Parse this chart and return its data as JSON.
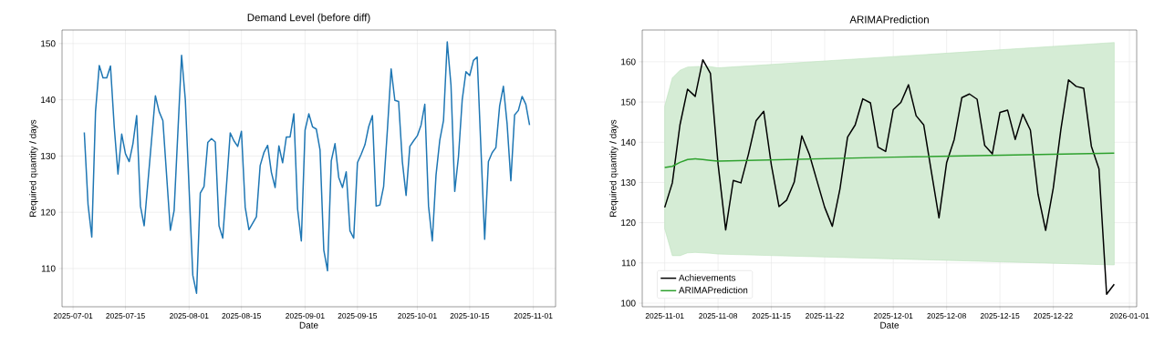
{
  "chart_data": [
    {
      "type": "line",
      "title": "Demand Level (before diff)",
      "xlabel": "Date",
      "ylabel": "Required quantity / days",
      "color": "#1f77b4",
      "x": [
        "2025-07-04",
        "2025-07-05",
        "2025-07-06",
        "2025-07-07",
        "2025-07-08",
        "2025-07-09",
        "2025-07-10",
        "2025-07-11",
        "2025-07-12",
        "2025-07-13",
        "2025-07-14",
        "2025-07-15",
        "2025-07-16",
        "2025-07-17",
        "2025-07-18",
        "2025-07-19",
        "2025-07-20",
        "2025-07-23",
        "2025-07-24",
        "2025-07-25",
        "2025-07-27",
        "2025-07-28",
        "2025-07-30",
        "2025-07-31",
        "2025-08-02",
        "2025-08-03",
        "2025-08-04",
        "2025-08-05",
        "2025-08-06",
        "2025-08-07",
        "2025-08-08",
        "2025-08-09",
        "2025-08-10",
        "2025-08-12",
        "2025-08-13",
        "2025-08-14",
        "2025-08-15",
        "2025-08-16",
        "2025-08-17",
        "2025-08-19",
        "2025-08-20",
        "2025-08-21",
        "2025-08-22",
        "2025-08-23",
        "2025-08-24",
        "2025-08-25",
        "2025-08-26",
        "2025-08-27",
        "2025-08-28",
        "2025-08-29",
        "2025-08-30",
        "2025-08-31",
        "2025-09-01",
        "2025-09-02",
        "2025-09-03",
        "2025-09-04",
        "2025-09-05",
        "2025-09-06",
        "2025-09-07",
        "2025-09-08",
        "2025-09-09",
        "2025-09-10",
        "2025-09-11",
        "2025-09-12",
        "2025-09-13",
        "2025-09-14",
        "2025-09-15",
        "2025-09-16",
        "2025-09-17",
        "2025-09-18",
        "2025-09-19",
        "2025-09-20",
        "2025-09-21",
        "2025-09-22",
        "2025-09-23",
        "2025-09-24",
        "2025-09-25",
        "2025-09-26",
        "2025-09-27",
        "2025-09-28",
        "2025-09-29",
        "2025-09-30",
        "2025-10-01",
        "2025-10-02",
        "2025-10-03",
        "2025-10-04",
        "2025-10-05",
        "2025-10-06",
        "2025-10-07",
        "2025-10-08",
        "2025-10-09",
        "2025-10-10",
        "2025-10-11",
        "2025-10-12",
        "2025-10-13",
        "2025-10-14",
        "2025-10-15",
        "2025-10-16",
        "2025-10-17",
        "2025-10-19",
        "2025-10-20",
        "2025-10-21",
        "2025-10-22",
        "2025-10-23",
        "2025-10-24",
        "2025-10-25",
        "2025-10-26",
        "2025-10-27",
        "2025-10-28",
        "2025-10-29",
        "2025-10-30",
        "2025-10-31"
      ],
      "values": [
        134.2,
        121.4,
        115.6,
        137.9,
        146.1,
        143.9,
        143.9,
        146.0,
        135.2,
        126.8,
        133.9,
        130.4,
        129.0,
        132.2,
        137.2,
        121.1,
        117.6,
        140.7,
        137.9,
        136.3,
        116.8,
        120.3,
        147.9,
        140.0,
        108.8,
        105.6,
        123.4,
        124.6,
        132.4,
        133.1,
        132.5,
        117.6,
        115.4,
        134.1,
        132.7,
        131.7,
        134.4,
        120.9,
        116.9,
        119.2,
        128.3,
        130.6,
        131.9,
        127.1,
        124.4,
        131.8,
        128.8,
        133.4,
        133.4,
        137.5,
        120.6,
        114.9,
        134.6,
        137.5,
        135.2,
        134.8,
        131.1,
        113.3,
        109.6,
        129.1,
        132.2,
        126.2,
        124.4,
        127.2,
        116.7,
        115.4,
        128.8,
        130.3,
        132.0,
        135.2,
        137.2,
        121.1,
        121.3,
        124.6,
        134.6,
        145.5,
        139.9,
        139.7,
        129.0,
        123.0,
        131.7,
        132.7,
        133.6,
        135.5,
        139.2,
        121.1,
        114.9,
        126.6,
        132.8,
        136.3,
        150.3,
        142.6,
        123.7,
        129.9,
        140.0,
        145.0,
        144.3,
        147.0,
        147.6,
        115.2,
        129.0,
        130.6,
        131.5,
        138.9,
        142.4,
        135.7,
        125.6,
        137.3,
        138.1,
        140.6,
        139.2,
        135.5
      ],
      "xlim": [
        "2025-06-28T01:12",
        "2025-11-06T22:48"
      ],
      "ylim": [
        103.2,
        152.4
      ],
      "xticks": [
        "2025-07-01",
        "2025-07-15",
        "2025-08-01",
        "2025-08-15",
        "2025-09-01",
        "2025-09-15",
        "2025-10-01",
        "2025-10-15",
        "2025-11-01"
      ],
      "yticks": [
        110,
        120,
        130,
        140,
        150
      ],
      "grid": true
    },
    {
      "type": "line",
      "title": "ARIMAPrediction",
      "xlabel": "Date",
      "ylabel": "Required quantity / days",
      "series": [
        {
          "name": "Achievements",
          "color": "#000000",
          "x": [
            "2025-11-01",
            "2025-11-02",
            "2025-11-03",
            "2025-11-04",
            "2025-11-05",
            "2025-11-06",
            "2025-11-07",
            "2025-11-08",
            "2025-11-09",
            "2025-11-10",
            "2025-11-11",
            "2025-11-12",
            "2025-11-13",
            "2025-11-14",
            "2025-11-15",
            "2025-11-16",
            "2025-11-17",
            "2025-11-18",
            "2025-11-19",
            "2025-11-20",
            "2025-11-21",
            "2025-11-22",
            "2025-11-23",
            "2025-11-24",
            "2025-11-25",
            "2025-11-26",
            "2025-11-27",
            "2025-11-28",
            "2025-11-29",
            "2025-11-30",
            "2025-12-01",
            "2025-12-02",
            "2025-12-03",
            "2025-12-04",
            "2025-12-05",
            "2025-12-06",
            "2025-12-07",
            "2025-12-08",
            "2025-12-09",
            "2025-12-10",
            "2025-12-11",
            "2025-12-12",
            "2025-12-13",
            "2025-12-14",
            "2025-12-15",
            "2025-12-16",
            "2025-12-17",
            "2025-12-18",
            "2025-12-19",
            "2025-12-20",
            "2025-12-21",
            "2025-12-22",
            "2025-12-23",
            "2025-12-24",
            "2025-12-25",
            "2025-12-26",
            "2025-12-27",
            "2025-12-28",
            "2025-12-29",
            "2025-12-30"
          ],
          "values": [
            123.8,
            129.9,
            144.3,
            153.2,
            151.4,
            160.5,
            157.1,
            134.6,
            118.2,
            130.5,
            129.9,
            137.1,
            145.4,
            147.7,
            134.3,
            124.0,
            125.6,
            130.1,
            141.6,
            136.9,
            130.3,
            123.8,
            119.1,
            128.4,
            141.3,
            144.3,
            150.8,
            149.8,
            138.8,
            137.7,
            148.1,
            149.9,
            154.3,
            146.6,
            144.3,
            132.7,
            121.2,
            134.9,
            140.7,
            151.1,
            152.0,
            150.7,
            139.2,
            137.1,
            147.4,
            148.0,
            140.7,
            147.0,
            143.0,
            127.1,
            118.1,
            128.6,
            143.2,
            155.5,
            153.9,
            153.4,
            139.0,
            133.4,
            102.2,
            104.7
          ]
        },
        {
          "name": "ARIMAPrediction",
          "color": "#2ca02c",
          "x": [
            "2025-11-01",
            "2025-11-02",
            "2025-11-03",
            "2025-11-04",
            "2025-11-05",
            "2025-11-06",
            "2025-11-07",
            "2025-11-08",
            "2025-12-01",
            "2025-12-30"
          ],
          "values": [
            133.7,
            134.0,
            135.0,
            135.7,
            135.9,
            135.7,
            135.5,
            135.3,
            136.3,
            137.3
          ],
          "lower": [
            118.5,
            111.8,
            111.8,
            112.5,
            112.6,
            112.5,
            112.4,
            112.2,
            111.0,
            109.5
          ],
          "upper": [
            149.0,
            156.0,
            157.9,
            158.7,
            158.8,
            158.9,
            158.8,
            158.5,
            161.3,
            164.8
          ]
        }
      ],
      "xlim": [
        "2025-10-29T01:12",
        "2026-01-01T22:48"
      ],
      "ylim": [
        99.1,
        167.9
      ],
      "xticks": [
        "2025-11-01",
        "2025-11-08",
        "2025-11-15",
        "2025-11-22",
        "2025-12-01",
        "2025-12-08",
        "2025-12-15",
        "2025-12-22",
        "2026-01-01"
      ],
      "yticks": [
        100,
        110,
        120,
        130,
        140,
        150,
        160
      ],
      "grid": true,
      "legend": "bottom left"
    }
  ]
}
